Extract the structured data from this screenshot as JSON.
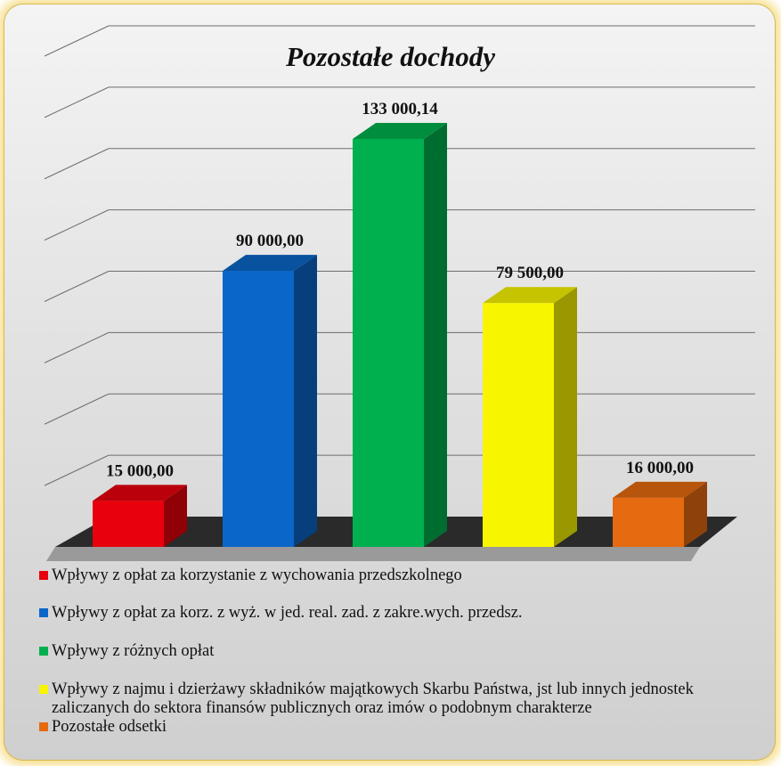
{
  "chart_data": {
    "type": "bar",
    "title": "Pozostałe dochody",
    "categories": [
      "Wpływy z opłat za korzystanie z wychowania przedszkolnego",
      "Wpływy z opłat za korz. z wyż. w jed. real. zad. z zakre.wych. przedsz.",
      "Wpływy z różnych opłat",
      "Wpływy z najmu i dzierżawy składników majątkowych Skarbu Państwa, jst lub innych jednostek zaliczanych do sektora finansów publicznych oraz imów o podobnym charakterze",
      "Pozostałe odsetki"
    ],
    "values": [
      15000.0,
      90000.0,
      133000.14,
      79500.0,
      16000.0
    ],
    "value_labels": [
      "15 000,00",
      "90 000,00",
      "133 000,14",
      "79 500,00",
      "16 000,00"
    ],
    "colors": [
      "#e8000c",
      "#0a66c8",
      "#00b04e",
      "#f8f500",
      "#e56a10"
    ],
    "ylim": [
      0,
      160000
    ],
    "grid": true,
    "legend_position": "bottom",
    "three_d": true
  }
}
